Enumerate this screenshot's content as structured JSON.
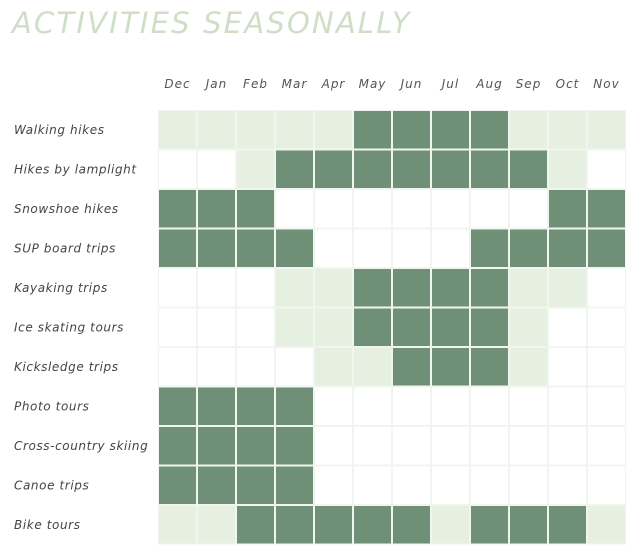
{
  "title": "ACTIVITIES SEASONALLY",
  "chart_data": {
    "type": "heatmap",
    "title": "ACTIVITIES SEASONALLY",
    "months": [
      "Dec",
      "Jan",
      "Feb",
      "Mar",
      "Apr",
      "May",
      "Jun",
      "Jul",
      "Aug",
      "Sep",
      "Oct",
      "Nov"
    ],
    "levels": {
      "0": "none",
      "1": "light",
      "2": "dark"
    },
    "colors": {
      "none": "#ffffff",
      "light": "#e6f0e0",
      "dark": "#6f8f76",
      "grid": "#f1f5ef"
    },
    "activities": [
      {
        "name": "Walking hikes",
        "values": [
          1,
          1,
          1,
          1,
          1,
          2,
          2,
          2,
          2,
          1,
          1,
          1
        ]
      },
      {
        "name": "Hikes by lamplight",
        "values": [
          0,
          0,
          1,
          2,
          2,
          2,
          2,
          2,
          2,
          2,
          1,
          0
        ]
      },
      {
        "name": "Snowshoe hikes",
        "values": [
          2,
          2,
          2,
          0,
          0,
          0,
          0,
          0,
          0,
          0,
          2,
          2
        ]
      },
      {
        "name": "SUP board trips",
        "values": [
          2,
          2,
          2,
          2,
          0,
          0,
          0,
          0,
          2,
          2,
          2,
          2
        ]
      },
      {
        "name": "Kayaking trips",
        "values": [
          0,
          0,
          0,
          1,
          1,
          2,
          2,
          2,
          2,
          1,
          1,
          0
        ]
      },
      {
        "name": "Ice skating tours",
        "values": [
          0,
          0,
          0,
          1,
          1,
          2,
          2,
          2,
          2,
          1,
          0,
          0
        ]
      },
      {
        "name": "Kicksledge trips",
        "values": [
          0,
          0,
          0,
          0,
          1,
          1,
          2,
          2,
          2,
          1,
          0,
          0
        ]
      },
      {
        "name": "Photo tours",
        "values": [
          2,
          2,
          2,
          2,
          0,
          0,
          0,
          0,
          0,
          0,
          0,
          0
        ]
      },
      {
        "name": "Cross-country skiing",
        "values": [
          2,
          2,
          2,
          2,
          0,
          0,
          0,
          0,
          0,
          0,
          0,
          0
        ]
      },
      {
        "name": "Canoe trips",
        "values": [
          2,
          2,
          2,
          2,
          0,
          0,
          0,
          0,
          0,
          0,
          0,
          0
        ]
      },
      {
        "name": "Bike tours",
        "values": [
          1,
          1,
          2,
          2,
          2,
          2,
          2,
          1,
          2,
          2,
          2,
          1
        ]
      }
    ]
  }
}
